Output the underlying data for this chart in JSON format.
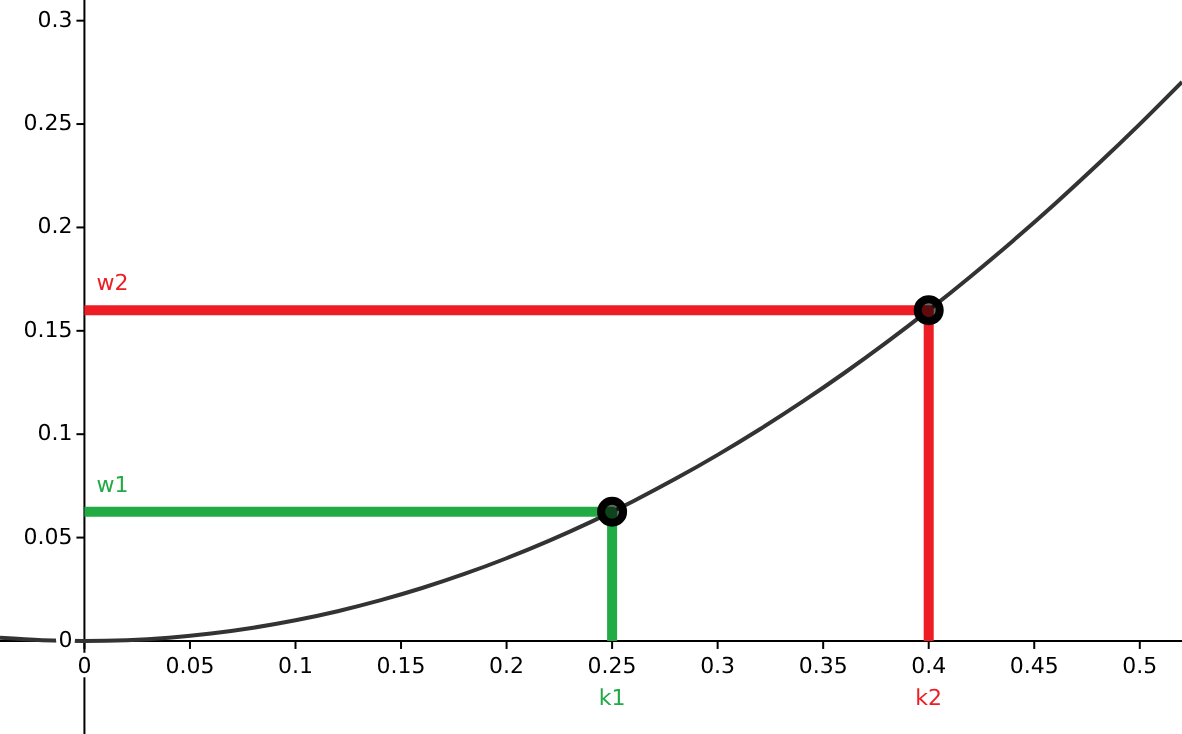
{
  "chart_data": {
    "type": "line",
    "xlim": [
      -0.04,
      0.52
    ],
    "ylim": [
      -0.045,
      0.31
    ],
    "xticks": [
      0,
      0.05,
      0.1,
      0.15,
      0.2,
      0.25,
      0.3,
      0.35,
      0.4,
      0.45,
      0.5
    ],
    "yticks": [
      0,
      0.05,
      0.1,
      0.15,
      0.2,
      0.25,
      0.3
    ],
    "grid": false,
    "marker": "none",
    "line_style": "solid",
    "series": [
      {
        "color": "#333333",
        "x": [
          -0.04,
          -0.02,
          0,
          0.02,
          0.04,
          0.06,
          0.08,
          0.1,
          0.12,
          0.14,
          0.16,
          0.18,
          0.2,
          0.22,
          0.24,
          0.26,
          0.28,
          0.3,
          0.32,
          0.34,
          0.36,
          0.38,
          0.4,
          0.42,
          0.44,
          0.46,
          0.48,
          0.5,
          0.52
        ],
        "values": [
          0.0016,
          0.0004,
          0,
          0.0004,
          0.0016,
          0.0036,
          0.0064,
          0.01,
          0.0144,
          0.0196,
          0.0256,
          0.0324,
          0.04,
          0.0484,
          0.0576,
          0.0676,
          0.0784,
          0.09,
          0.1024,
          0.1156,
          0.1296,
          0.1444,
          0.16,
          0.1764,
          0.1936,
          0.2116,
          0.2304,
          0.25,
          0.2704
        ]
      },
      {
        "color": "#22aa44",
        "x": [
          0,
          0.25,
          0.25
        ],
        "values": [
          0.0625,
          0.0625,
          0
        ]
      },
      {
        "color": "#ee1c24",
        "x": [
          0,
          0.4,
          0.4
        ],
        "values": [
          0.16,
          0.16,
          0
        ]
      },
      {
        "type": "scatter",
        "marker": "circle",
        "color": "#000000",
        "x": [
          0.25,
          0.4
        ],
        "values": [
          0.0625,
          0.16
        ]
      }
    ],
    "annotations": [
      {
        "text": "w1",
        "x": 0,
        "y": 0.0625
      },
      {
        "text": "k1",
        "x": 0.25,
        "y": 0
      },
      {
        "text": "w2",
        "x": 0,
        "y": 0.16
      },
      {
        "text": "k2",
        "x": 0.4,
        "y": 0
      }
    ]
  }
}
